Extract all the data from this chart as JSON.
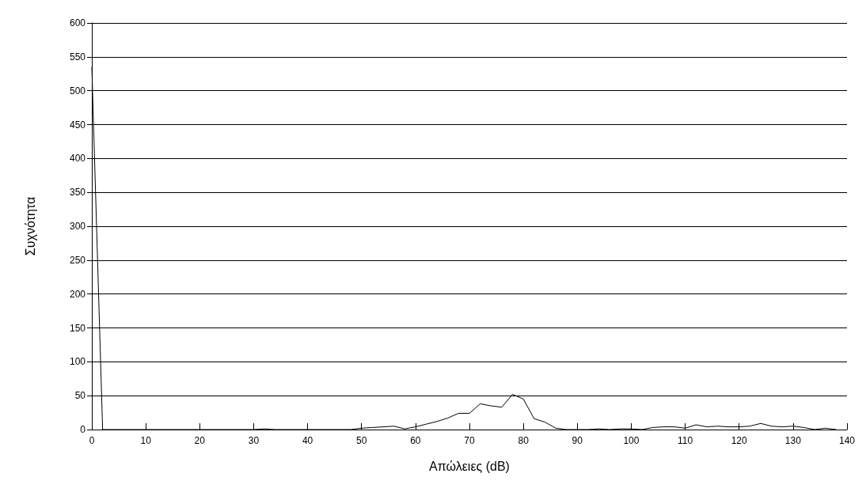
{
  "chart_data": {
    "type": "line",
    "xlabel": "Απώλειες (dB)",
    "ylabel": "Συχνότητα",
    "x": [
      0,
      2,
      4,
      6,
      8,
      10,
      12,
      14,
      16,
      18,
      20,
      22,
      24,
      26,
      28,
      30,
      32,
      34,
      36,
      38,
      40,
      42,
      44,
      46,
      48,
      50,
      52,
      54,
      56,
      58,
      60,
      62,
      64,
      66,
      68,
      70,
      72,
      74,
      76,
      78,
      80,
      82,
      84,
      86,
      88,
      90,
      92,
      94,
      96,
      98,
      100,
      102,
      104,
      106,
      108,
      110,
      112,
      114,
      116,
      118,
      120,
      122,
      124,
      126,
      128,
      130,
      132,
      134,
      136,
      138
    ],
    "series": [
      {
        "color": "#000000",
        "values": [
          535,
          0,
          0,
          0,
          0,
          0,
          0,
          0,
          0,
          0,
          0,
          0,
          0,
          0,
          0,
          0,
          1,
          0,
          0,
          0,
          0,
          0,
          0,
          0,
          0,
          2,
          3,
          4,
          5,
          1,
          4,
          8,
          12,
          17,
          24,
          24,
          38,
          35,
          33,
          52,
          45,
          16,
          11,
          2,
          0,
          0,
          0,
          1,
          0,
          1,
          1,
          0,
          3,
          4,
          4,
          2,
          7,
          4,
          5,
          4,
          4,
          5,
          9,
          5,
          4,
          5,
          3,
          0,
          2,
          0
        ]
      }
    ],
    "xlim": [
      0,
      140
    ],
    "xticks": [
      0,
      10,
      20,
      30,
      40,
      50,
      60,
      70,
      80,
      90,
      100,
      110,
      120,
      130,
      140
    ],
    "ylim": [
      0,
      600
    ],
    "yticks": [
      0,
      50,
      100,
      150,
      200,
      250,
      300,
      350,
      400,
      450,
      500,
      550,
      600
    ],
    "grid": "y",
    "marker": "none",
    "line_style": "solid"
  }
}
